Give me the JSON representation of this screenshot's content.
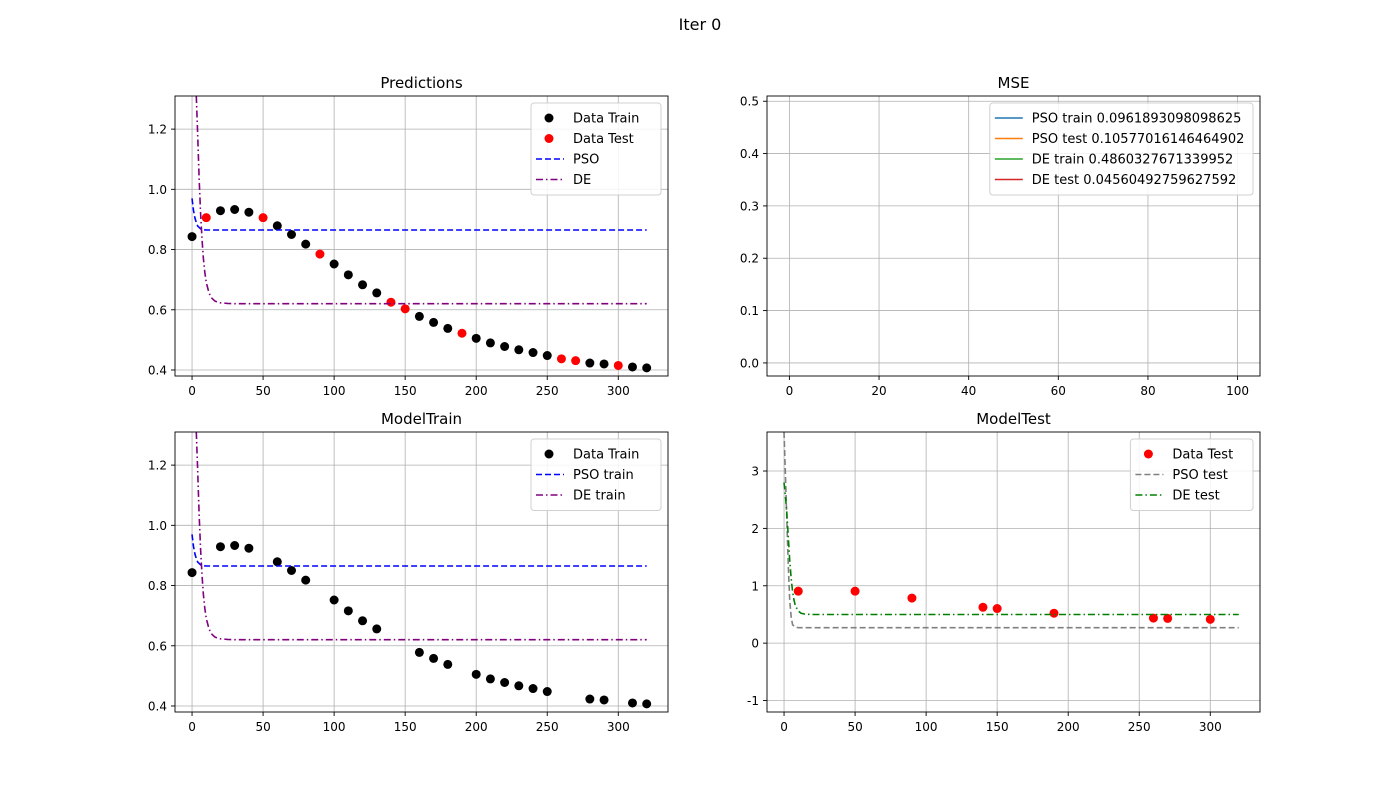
{
  "figure": {
    "suptitle": "Iter 0"
  },
  "colors": {
    "train": "#000000",
    "test": "#ff0000",
    "pso": "#0000ff",
    "de": "#800080",
    "mse_pso_train": "#1f77b4",
    "mse_pso_test": "#ff7f0e",
    "mse_de_train": "#2ca02c",
    "mse_de_test": "#d62728",
    "pso_test_line": "#808080",
    "de_test_line": "#008000",
    "grid": "#b0b0b0"
  },
  "chart_data": [
    {
      "id": "predictions",
      "type": "scatter",
      "title": "Predictions",
      "xlim": [
        -12,
        335
      ],
      "ylim": [
        0.38,
        1.31
      ],
      "xticks": [
        0,
        50,
        100,
        150,
        200,
        250,
        300
      ],
      "yticks": [
        0.4,
        0.6,
        0.8,
        1.0,
        1.2
      ],
      "ytick_format": 1,
      "grid": true,
      "legend": "upper right",
      "series": [
        {
          "name": "Data Train",
          "kind": "scatter",
          "color": "#000000",
          "x": [
            0,
            20,
            30,
            40,
            60,
            70,
            80,
            100,
            110,
            120,
            130,
            160,
            170,
            180,
            200,
            210,
            220,
            230,
            240,
            250,
            280,
            290,
            310,
            320
          ],
          "y": [
            0.843,
            0.929,
            0.933,
            0.924,
            0.879,
            0.85,
            0.818,
            0.752,
            0.716,
            0.683,
            0.656,
            0.578,
            0.558,
            0.538,
            0.505,
            0.49,
            0.478,
            0.467,
            0.458,
            0.448,
            0.423,
            0.42,
            0.41,
            0.407
          ]
        },
        {
          "name": "Data Test",
          "kind": "scatter",
          "color": "#ff0000",
          "x": [
            10,
            50,
            90,
            140,
            150,
            190,
            260,
            270,
            300
          ],
          "y": [
            0.906,
            0.906,
            0.785,
            0.625,
            0.603,
            0.522,
            0.437,
            0.431,
            0.415
          ]
        },
        {
          "name": "PSO",
          "kind": "line",
          "style": "dashed",
          "color": "#0000ff",
          "x": [
            0,
            1,
            2,
            3,
            4,
            6,
            8,
            10,
            15,
            20,
            320
          ],
          "y": [
            0.97,
            0.93,
            0.905,
            0.89,
            0.878,
            0.869,
            0.866,
            0.865,
            0.865,
            0.865,
            0.865
          ]
        },
        {
          "name": "DE",
          "kind": "line",
          "style": "dashdot",
          "color": "#800080",
          "x": [
            3,
            4,
            5,
            6,
            7,
            8,
            9,
            10,
            12,
            14,
            16,
            18,
            20,
            25,
            30,
            320
          ],
          "y": [
            1.31,
            1.18,
            1.03,
            0.92,
            0.835,
            0.77,
            0.725,
            0.69,
            0.655,
            0.638,
            0.629,
            0.625,
            0.623,
            0.621,
            0.62,
            0.62
          ]
        }
      ]
    },
    {
      "id": "mse",
      "type": "line",
      "title": "MSE",
      "xlim": [
        -5,
        105
      ],
      "ylim": [
        -0.025,
        0.51
      ],
      "xticks": [
        0,
        20,
        40,
        60,
        80,
        100
      ],
      "yticks": [
        0.0,
        0.1,
        0.2,
        0.3,
        0.4,
        0.5
      ],
      "ytick_format": 1,
      "grid": true,
      "legend": "upper right",
      "series": [
        {
          "name": "PSO train 0.0961893098098625",
          "kind": "line",
          "style": "solid",
          "color": "#1f77b4",
          "x": [],
          "y": []
        },
        {
          "name": "PSO test 0.10577016146464902",
          "kind": "line",
          "style": "solid",
          "color": "#ff7f0e",
          "x": [],
          "y": []
        },
        {
          "name": "DE train 0.4860327671339952",
          "kind": "line",
          "style": "solid",
          "color": "#2ca02c",
          "x": [],
          "y": []
        },
        {
          "name": "DE test 0.04560492759627592",
          "kind": "line",
          "style": "solid",
          "color": "#d62728",
          "x": [],
          "y": []
        }
      ]
    },
    {
      "id": "modeltrain",
      "type": "scatter",
      "title": "ModelTrain",
      "xlim": [
        -12,
        335
      ],
      "ylim": [
        0.38,
        1.31
      ],
      "xticks": [
        0,
        50,
        100,
        150,
        200,
        250,
        300
      ],
      "yticks": [
        0.4,
        0.6,
        0.8,
        1.0,
        1.2
      ],
      "ytick_format": 1,
      "grid": true,
      "legend": "upper right",
      "series": [
        {
          "name": "Data Train",
          "kind": "scatter",
          "color": "#000000",
          "x": [
            0,
            20,
            30,
            40,
            60,
            70,
            80,
            100,
            110,
            120,
            130,
            160,
            170,
            180,
            200,
            210,
            220,
            230,
            240,
            250,
            280,
            290,
            310,
            320
          ],
          "y": [
            0.843,
            0.929,
            0.933,
            0.924,
            0.879,
            0.85,
            0.818,
            0.752,
            0.716,
            0.683,
            0.656,
            0.578,
            0.558,
            0.538,
            0.505,
            0.49,
            0.478,
            0.467,
            0.458,
            0.448,
            0.423,
            0.42,
            0.41,
            0.407
          ]
        },
        {
          "name": "PSO train",
          "kind": "line",
          "style": "dashed",
          "color": "#0000ff",
          "x": [
            0,
            1,
            2,
            3,
            4,
            6,
            8,
            10,
            15,
            20,
            320
          ],
          "y": [
            0.97,
            0.93,
            0.905,
            0.89,
            0.878,
            0.869,
            0.866,
            0.865,
            0.865,
            0.865,
            0.865
          ]
        },
        {
          "name": "DE train",
          "kind": "line",
          "style": "dashdot",
          "color": "#800080",
          "x": [
            3,
            4,
            5,
            6,
            7,
            8,
            9,
            10,
            12,
            14,
            16,
            18,
            20,
            25,
            30,
            320
          ],
          "y": [
            1.31,
            1.18,
            1.03,
            0.92,
            0.835,
            0.77,
            0.725,
            0.69,
            0.655,
            0.638,
            0.629,
            0.625,
            0.623,
            0.621,
            0.62,
            0.62
          ]
        }
      ]
    },
    {
      "id": "modeltest",
      "type": "scatter",
      "title": "ModelTest",
      "xlim": [
        -12,
        335
      ],
      "ylim": [
        -1.2,
        3.68
      ],
      "xticks": [
        0,
        50,
        100,
        150,
        200,
        250,
        300
      ],
      "yticks": [
        -1,
        0,
        1,
        2,
        3
      ],
      "ytick_format": 0,
      "grid": true,
      "legend": "upper right",
      "series": [
        {
          "name": "Data Test",
          "kind": "scatter",
          "color": "#ff0000",
          "x": [
            10,
            50,
            90,
            140,
            150,
            190,
            260,
            270,
            300
          ],
          "y": [
            0.906,
            0.906,
            0.785,
            0.625,
            0.603,
            0.522,
            0.437,
            0.431,
            0.415
          ]
        },
        {
          "name": "PSO test",
          "kind": "line",
          "style": "dashed",
          "color": "#808080",
          "x": [
            0,
            1,
            2,
            3,
            4,
            5,
            6,
            8,
            10,
            320
          ],
          "y": [
            3.68,
            2.9,
            2.1,
            1.35,
            0.75,
            0.45,
            0.32,
            0.28,
            0.27,
            0.27
          ]
        },
        {
          "name": "DE test",
          "kind": "line",
          "style": "dashdot",
          "color": "#008000",
          "x": [
            0,
            1,
            2,
            3,
            4,
            5,
            6,
            7,
            8,
            10,
            12,
            15,
            20,
            320
          ],
          "y": [
            2.8,
            2.55,
            2.25,
            1.85,
            1.45,
            1.12,
            0.9,
            0.75,
            0.65,
            0.56,
            0.52,
            0.505,
            0.5,
            0.5
          ]
        }
      ]
    }
  ]
}
